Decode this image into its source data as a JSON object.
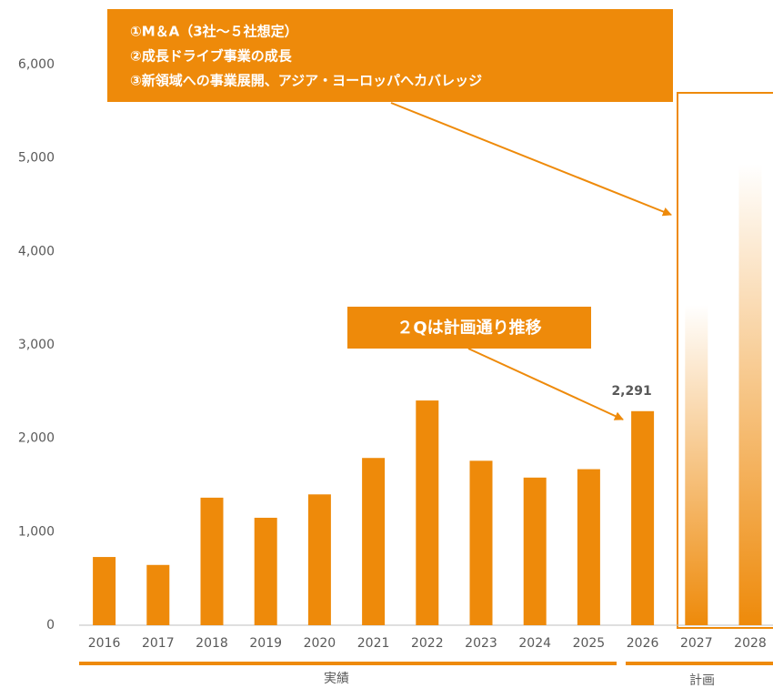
{
  "chart_data": {
    "type": "bar",
    "categories": [
      "2016",
      "2017",
      "2018",
      "2019",
      "2020",
      "2021",
      "2022",
      "2023",
      "2024",
      "2025",
      "2026",
      "2027",
      "2028"
    ],
    "series": [
      {
        "name": "実績",
        "color": "#ee8a0a",
        "values": [
          730,
          645,
          1365,
          1150,
          1400,
          1790,
          2405,
          1760,
          1580,
          1670,
          2291,
          null,
          null
        ],
        "value_labels": [
          null,
          null,
          null,
          null,
          null,
          null,
          null,
          null,
          null,
          null,
          "2,291",
          null,
          null
        ]
      },
      {
        "name": "計画",
        "color": "#ee8a0a",
        "gradient": true,
        "values": [
          null,
          null,
          null,
          null,
          null,
          null,
          null,
          null,
          null,
          null,
          null,
          3430,
          4940
        ]
      }
    ],
    "ylim": [
      0,
      6000
    ],
    "yticks": [
      0,
      {
        "value": 1000,
        "label": "1,000"
      },
      {
        "value": 2000,
        "label": "2,000"
      },
      {
        "value": 3000,
        "label": "3,000"
      },
      {
        "value": 4000,
        "label": "4,000"
      },
      {
        "value": 5000,
        "label": "5,000"
      },
      {
        "value": 6000,
        "label": "6,000"
      }
    ],
    "annotations": [
      {
        "lines": [
          "①M＆A（3社～５社想定）",
          "②成長ドライブ事業の成長",
          "③新領域への事業展開、アジア・ヨーロッパへカバレッジ"
        ]
      },
      {
        "text": "２Qは計画通り推移"
      }
    ]
  }
}
